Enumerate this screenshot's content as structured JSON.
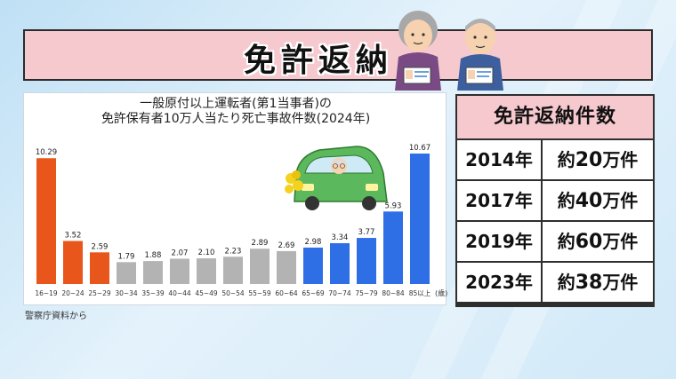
{
  "banner": {
    "title": "免許返納"
  },
  "chart_data": {
    "type": "bar",
    "title_line1": "一般原付以上運転者(第1当事者)の",
    "title_line2": "免許保有者10万人当たり死亡事故件数(2024年)",
    "categories": [
      "16~19",
      "20~24",
      "25~29",
      "30~34",
      "35~39",
      "40~44",
      "45~49",
      "50~54",
      "55~59",
      "60~64",
      "65~69",
      "70~74",
      "75~79",
      "80~84",
      "85以上"
    ],
    "values": [
      10.29,
      3.52,
      2.59,
      1.79,
      1.88,
      2.07,
      2.1,
      2.23,
      2.89,
      2.69,
      2.98,
      3.34,
      3.77,
      5.93,
      10.67
    ],
    "value_labels": [
      "10.29",
      "3.52",
      "2.59",
      "1.79",
      "1.88",
      "2.07",
      "2.10",
      "2.23",
      "2.89",
      "2.69",
      "2.98",
      "3.34",
      "3.77",
      "5.93",
      "10.67"
    ],
    "bar_colors": [
      "#e8561c",
      "#e8561c",
      "#e8561c",
      "#b3b3b3",
      "#b3b3b3",
      "#b3b3b3",
      "#b3b3b3",
      "#b3b3b3",
      "#b3b3b3",
      "#b3b3b3",
      "#2f6fe6",
      "#2f6fe6",
      "#2f6fe6",
      "#2f6fe6",
      "#2f6fe6"
    ],
    "x_unit": "(歳)",
    "ylim": [
      0,
      10.67
    ],
    "grid": false,
    "legend": "none"
  },
  "source": "警察庁資料から",
  "table": {
    "header": "免許返納件数",
    "rows": [
      {
        "year": "2014年",
        "prefix": "約",
        "num": "20",
        "suffix": "万件"
      },
      {
        "year": "2017年",
        "prefix": "約",
        "num": "40",
        "suffix": "万件"
      },
      {
        "year": "2019年",
        "prefix": "約",
        "num": "60",
        "suffix": "万件"
      },
      {
        "year": "2023年",
        "prefix": "約",
        "num": "38",
        "suffix": "万件"
      }
    ]
  },
  "icons": {
    "elders": "elderly-couple-with-license-icon",
    "car": "elderly-driver-car-icon"
  }
}
